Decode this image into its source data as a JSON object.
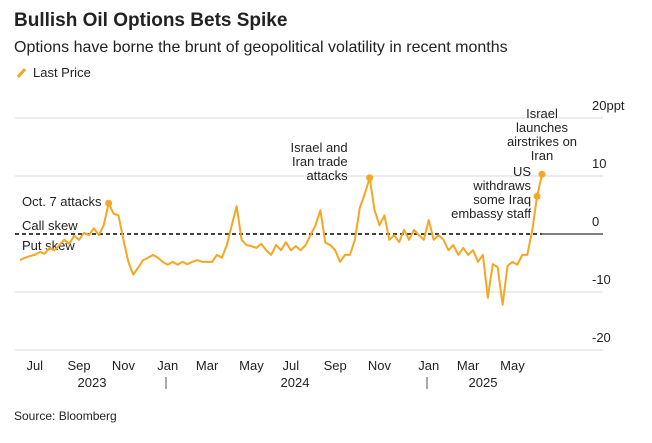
{
  "chart_data": {
    "type": "line",
    "title": "Bullish Oil Options Bets Spike",
    "subtitle": "Options have borne the brunt of geopolitical volatility in recent months",
    "source": "Source: Bloomberg",
    "call_label": "Call skew",
    "put_label": "Put skew",
    "year_labels": [
      "2023",
      "2024",
      "2025"
    ],
    "categories": [
      null,
      null,
      null,
      "Jul",
      null,
      null,
      null,
      null,
      null,
      null,
      null,
      null,
      "Sep",
      null,
      null,
      null,
      null,
      null,
      null,
      null,
      null,
      "Nov",
      null,
      null,
      null,
      null,
      null,
      null,
      null,
      null,
      "Jan",
      null,
      null,
      null,
      null,
      null,
      null,
      null,
      "Mar",
      null,
      null,
      null,
      null,
      null,
      null,
      null,
      null,
      "May",
      null,
      null,
      null,
      null,
      null,
      null,
      null,
      "Jul",
      null,
      null,
      null,
      null,
      null,
      null,
      null,
      null,
      "Sep",
      null,
      null,
      null,
      null,
      null,
      null,
      null,
      null,
      "Nov",
      null,
      null,
      null,
      null,
      null,
      null,
      null,
      null,
      null,
      "Jan",
      null,
      null,
      null,
      null,
      null,
      null,
      null,
      "Mar",
      null,
      null,
      null,
      null,
      null,
      null,
      null,
      null,
      "May",
      null,
      null,
      null,
      null,
      null,
      null
    ],
    "series": [
      {
        "name": "Last Price",
        "color": "#f5a623",
        "values": [
          -4.5,
          -4.1,
          -3.8,
          -3.6,
          -3.1,
          -3.4,
          -2.4,
          -2.8,
          -1.9,
          -1.0,
          -1.7,
          -0.3,
          -1.0,
          0.2,
          -0.2,
          1.0,
          -0.2,
          1.5,
          5.3,
          3.5,
          3.2,
          -1.0,
          -4.8,
          -7.0,
          -5.8,
          -4.5,
          -4.1,
          -3.6,
          -4.1,
          -4.8,
          -5.3,
          -4.8,
          -5.3,
          -4.8,
          -5.2,
          -4.8,
          -4.5,
          -4.8,
          -4.8,
          -4.8,
          -3.6,
          -4.1,
          -1.9,
          1.5,
          4.8,
          -1.0,
          -1.9,
          -2.1,
          -2.4,
          -1.7,
          -2.8,
          -3.6,
          -1.9,
          -2.8,
          -1.4,
          -2.8,
          -2.1,
          -2.8,
          -1.9,
          -0.2,
          1.5,
          4.1,
          -1.5,
          -1.9,
          -2.8,
          -4.8,
          -3.6,
          -3.6,
          -1.0,
          4.5,
          6.9,
          9.7,
          4.1,
          1.5,
          3.2,
          -1.0,
          -0.2,
          -1.4,
          0.7,
          -1.0,
          0.7,
          -0.2,
          -1.0,
          2.4,
          -1.0,
          -0.2,
          -1.0,
          -2.8,
          -1.9,
          -3.6,
          -2.4,
          -3.6,
          -2.8,
          -4.8,
          -3.6,
          -11.0,
          -5.2,
          -5.7,
          -12.2,
          -5.5,
          -4.8,
          -5.3,
          -3.6,
          -3.6,
          0.5,
          6.5,
          10.3
        ]
      }
    ],
    "annotations": [
      {
        "text": "Oct. 7 attacks",
        "index": 18
      },
      {
        "text": "Israel and\nIran trade\nattacks",
        "index": 71
      },
      {
        "text": "US\nwithdraws\nsome Iraq\nembassy staff",
        "index": 105
      },
      {
        "text": "Israel\nlaunches\nairstrikes on\nIran",
        "index": 106
      }
    ],
    "ylim": [
      -20,
      20
    ],
    "yticks": [
      {
        "value": 20,
        "label": "20ppt"
      },
      10,
      0,
      -10,
      -20
    ],
    "grid": true
  }
}
